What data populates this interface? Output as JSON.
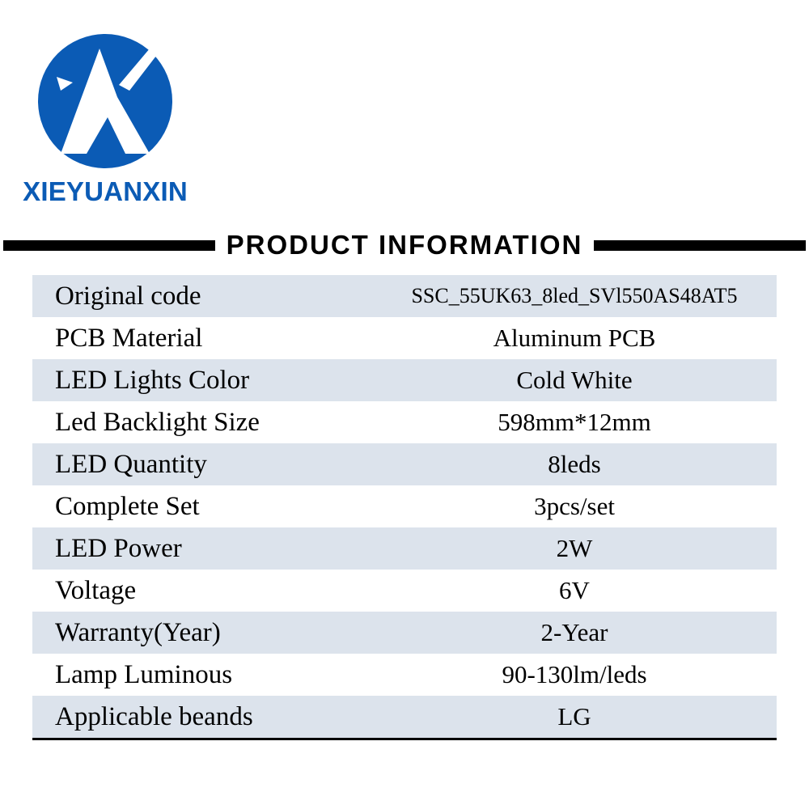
{
  "brand": {
    "name": "XIEYUANXIN",
    "logo_letter": "X",
    "logo_color": "#0b5bb5"
  },
  "section_title": "PRODUCT INFORMATION",
  "table": {
    "stripe_color": "#dce3ec",
    "plain_color": "#ffffff",
    "border_color": "#000000",
    "label_fontsize": 33,
    "value_fontsize": 31,
    "rows": [
      {
        "label": "Original code",
        "value": "SSC_55UK63_8led_SVl550AS48AT5",
        "code": true
      },
      {
        "label": "PCB Material",
        "value": "Aluminum PCB"
      },
      {
        "label": "LED Lights Color",
        "value": "Cold White"
      },
      {
        "label": "Led Backlight Size",
        "value": "598mm*12mm"
      },
      {
        "label": "LED Quantity",
        "value": "8leds"
      },
      {
        "label": "Complete Set",
        "value": "3pcs/set"
      },
      {
        "label": "LED Power",
        "value": "2W"
      },
      {
        "label": "Voltage",
        "value": "6V"
      },
      {
        "label": "Warranty(Year)",
        "value": "2-Year"
      },
      {
        "label": "Lamp Luminous",
        "value": "90-130lm/leds"
      },
      {
        "label": "Applicable beands",
        "value": "LG"
      }
    ]
  }
}
